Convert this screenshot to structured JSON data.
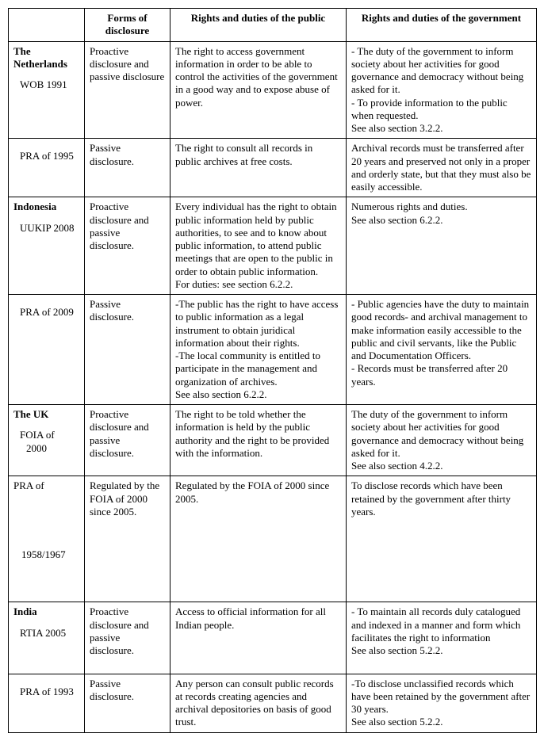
{
  "headers": {
    "blank": "",
    "forms": "Forms of disclosure",
    "public": "Rights and duties of the public",
    "gov": "Rights and duties of the government"
  },
  "rows": [
    {
      "country": "The Netherlands",
      "act": "WOB 1991",
      "forms": "Proactive disclosure and passive disclosure",
      "public": "The right to access government information in order to be able to control the activities of the government in a good way and to expose abuse of power.",
      "gov": "- The duty of the government to inform society about her activities for good governance and democracy without being asked for it.\n- To provide information to the public when requested.\nSee also section 3.2.2."
    },
    {
      "country": "",
      "act": "PRA of 1995",
      "forms": "Passive disclosure.",
      "public": "The right to consult all records in public archives at free costs.",
      "gov": "Archival records must be transferred after 20 years and preserved not only in a proper and orderly state, but that they must also be easily accessible."
    },
    {
      "country": "Indonesia",
      "act": "UUKIP 2008",
      "forms": "Proactive disclosure and passive disclosure.",
      "public": "Every individual has the right to obtain public information held by public authorities, to see and to know about public information, to attend public meetings that are open to the public in order to obtain public information.\nFor duties: see section 6.2.2.",
      "gov": "Numerous rights and duties.\nSee also section 6.2.2."
    },
    {
      "country": "",
      "act": "PRA of 2009",
      "forms": "Passive disclosure.",
      "public": "-The public has the right to have access to public information as a legal instrument to obtain juridical information about their rights.\n-The local community is entitled to participate in the management and organization of archives.\nSee also section 6.2.2.",
      "gov": "- Public agencies have the duty to maintain good records- and archival management to make information easily accessible to the public and civil servants, like the Public and Documentation Officers.\n- Records must be transferred after 20 years."
    },
    {
      "country": "The UK",
      "act": "FOIA of",
      "act2": "2000",
      "forms": "Proactive disclosure and passive disclosure.",
      "public": "The right to be told whether the information is held by the public authority and the right to be provided with the information.",
      "gov": "The duty of the government to inform society about her activities for good governance and democracy without being asked for it.\nSee also section 4.2.2."
    },
    {
      "country": "",
      "act_top": "PRA of",
      "act_bottom": "1958/1967",
      "forms": "Regulated by the FOIA of 2000 since 2005.",
      "public": "Regulated by the FOIA of  2000 since 2005.",
      "gov": "To disclose records which have been retained by the government after thirty years.",
      "tall": true
    },
    {
      "country": "India",
      "act": "RTIA 2005",
      "forms": "Proactive disclosure and passive disclosure.",
      "public": "Access to official information for all Indian people.",
      "gov": "- To maintain all records duly catalogued and indexed in a manner and form which facilitates the right to information\nSee also section 5.2.2.",
      "pad": true
    },
    {
      "country": "",
      "act": "PRA of 1993",
      "forms": "Passive disclosure.",
      "public": "Any person can consult public records at records creating agencies and archival depositories on basis of good trust.",
      "gov": "-To disclose unclassified records which have been retained by the government after 30 years.\nSee also section 5.2.2."
    }
  ]
}
